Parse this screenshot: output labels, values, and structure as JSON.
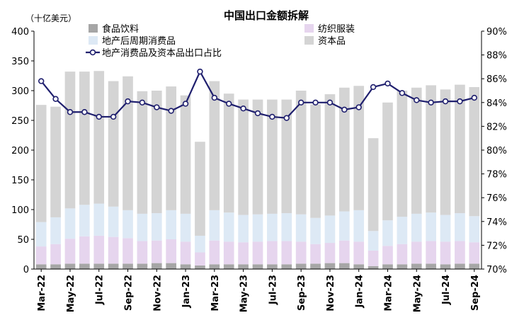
{
  "chart_data": {
    "type": "bar",
    "title": "中国出口金额拆解",
    "ylabel": "（十亿美元）",
    "ylim": [
      0,
      400
    ],
    "yticks": [
      0,
      50,
      100,
      150,
      200,
      250,
      300,
      350,
      400
    ],
    "y2lim": [
      70,
      90
    ],
    "y2ticks": [
      "70%",
      "72%",
      "74%",
      "76%",
      "78%",
      "80%",
      "82%",
      "84%",
      "86%",
      "88%",
      "90%"
    ],
    "stacked": true,
    "legend_position": "top",
    "categories": [
      "Mar-22",
      "Apr-22",
      "May-22",
      "Jun-22",
      "Jul-22",
      "Aug-22",
      "Sep-22",
      "Oct-22",
      "Nov-22",
      "Dec-22",
      "Jan-23",
      "Feb-23",
      "Mar-23",
      "Apr-23",
      "May-23",
      "Jun-23",
      "Jul-23",
      "Aug-23",
      "Sep-23",
      "Oct-23",
      "Nov-23",
      "Dec-23",
      "Jan-24",
      "Feb-24",
      "Mar-24",
      "Apr-24",
      "May-24",
      "Jun-24",
      "Jul-24",
      "Aug-24",
      "Sep-24"
    ],
    "xtick_labels": [
      "Mar-22",
      "May-22",
      "Jul-22",
      "Sep-22",
      "Nov-22",
      "Jan-23",
      "Mar-23",
      "May-23",
      "Jul-23",
      "Sep-23",
      "Nov-23",
      "Jan-24",
      "Mar-24",
      "May-24",
      "Jul-24",
      "Sep-24"
    ],
    "series": [
      {
        "name": "食品饮料",
        "color": "#a6a6a6",
        "values": [
          8,
          8,
          9,
          9,
          9,
          9,
          9,
          9,
          10,
          10,
          8,
          6,
          8,
          8,
          8,
          8,
          8,
          8,
          9,
          9,
          10,
          10,
          8,
          5,
          8,
          8,
          9,
          9,
          8,
          9,
          9
        ]
      },
      {
        "name": "纺织服装",
        "color": "#e6d5ee",
        "values": [
          30,
          34,
          42,
          46,
          47,
          45,
          43,
          38,
          38,
          40,
          38,
          22,
          40,
          38,
          37,
          38,
          39,
          39,
          37,
          33,
          34,
          38,
          38,
          26,
          31,
          34,
          37,
          38,
          38,
          38,
          36
        ]
      },
      {
        "name": "地产后周期消费品",
        "color": "#dde9f5",
        "values": [
          41,
          45,
          51,
          53,
          54,
          51,
          47,
          46,
          46,
          49,
          47,
          28,
          51,
          49,
          46,
          46,
          46,
          47,
          46,
          44,
          46,
          49,
          53,
          33,
          43,
          46,
          47,
          48,
          45,
          47,
          44
        ]
      },
      {
        "name": "资本品",
        "color": "#d4d4d4",
        "values": [
          197,
          186,
          230,
          224,
          223,
          211,
          225,
          206,
          206,
          208,
          199,
          158,
          217,
          200,
          194,
          193,
          192,
          191,
          208,
          191,
          204,
          208,
          209,
          156,
          198,
          212,
          212,
          214,
          211,
          216,
          217
        ]
      },
      {
        "name": "地产消费品及资本品出口占比",
        "type": "line",
        "axis": "right",
        "color": "#1f1f6e",
        "values": [
          85.8,
          84.3,
          83.2,
          83.2,
          82.8,
          82.8,
          84.1,
          84.0,
          83.6,
          83.3,
          83.9,
          86.6,
          84.4,
          83.9,
          83.5,
          83.1,
          82.8,
          82.7,
          84.0,
          84.0,
          84.0,
          83.4,
          83.6,
          85.3,
          85.6,
          84.8,
          84.2,
          84.0,
          84.1,
          84.1,
          84.4
        ]
      }
    ]
  }
}
